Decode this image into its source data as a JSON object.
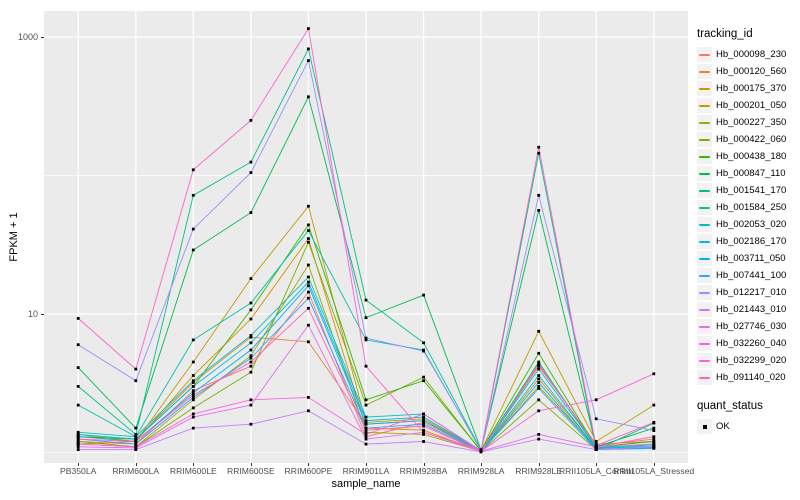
{
  "figure": {
    "background": "#FFFFFF",
    "panel_bg": "#EBEBEB",
    "grid_color": "#FFFFFF",
    "tick_color": "#333333",
    "tick_label_color": "#4D4D4D",
    "point_color": "#000000"
  },
  "chart_data": {
    "type": "line",
    "title": "",
    "xlabel": "sample_name",
    "ylabel": "FPKM + 1",
    "y_scale": "log10",
    "grid": true,
    "legend_position": "right",
    "x_categories": [
      "PB350LA",
      "RRIM600LA",
      "RRIM600LE",
      "RRIM600SE",
      "RRIM600PE",
      "RRIM901LA",
      "RRIM928BA",
      "RRIM928LA",
      "RRIM928LE",
      "RRII105LA_Control",
      "RRII105LA_Stressed"
    ],
    "y_major_ticks": [
      {
        "value": 10,
        "label": "10"
      },
      {
        "value": 1000,
        "label": "1000"
      }
    ],
    "y_minor_ticks": [
      1,
      100
    ],
    "ylim": [
      0.84,
      1540
    ],
    "legend_title": "tracking_id",
    "legend2_title": "quant_status",
    "quant_status": {
      "label": "OK",
      "marker_color": "#000000"
    },
    "series": [
      {
        "name": "Hb_000098_230",
        "color": "#F8766D",
        "values": [
          1.2,
          1.15,
          2.8,
          4.2,
          14.4,
          1.3,
          1.65,
          1.03,
          4.4,
          1.12,
          1.25
        ]
      },
      {
        "name": "Hb_000120_560",
        "color": "#EA8331",
        "values": [
          1.3,
          1.25,
          3.2,
          6.8,
          6.3,
          1.6,
          1.7,
          1.03,
          4.2,
          1.15,
          1.2
        ]
      },
      {
        "name": "Hb_000175_370",
        "color": "#D89000",
        "values": [
          1.15,
          1.2,
          3.6,
          9.2,
          35,
          1.5,
          1.45,
          1.02,
          3.4,
          1.08,
          1.1
        ]
      },
      {
        "name": "Hb_000201_050",
        "color": "#C09B00",
        "values": [
          1.35,
          1.2,
          4.5,
          18,
          60,
          1.65,
          1.75,
          1.03,
          7.5,
          1.2,
          2.2
        ]
      },
      {
        "name": "Hb_000227_350",
        "color": "#A3A500",
        "values": [
          1.15,
          1.1,
          2.4,
          5.0,
          22.6,
          1.4,
          1.35,
          1.02,
          3.0,
          1.08,
          1.15
        ]
      },
      {
        "name": "Hb_000422_060",
        "color": "#7CAE00",
        "values": [
          1.2,
          1.1,
          2.1,
          3.8,
          33,
          2.2,
          3.5,
          1.02,
          2.4,
          1.05,
          1.08
        ]
      },
      {
        "name": "Hb_000438_180",
        "color": "#39B600",
        "values": [
          1.3,
          1.25,
          3.0,
          10.7,
          44,
          2.4,
          3.3,
          1.03,
          5.2,
          1.1,
          1.2
        ]
      },
      {
        "name": "Hb_000847_110",
        "color": "#00BB4E",
        "values": [
          4.1,
          1.5,
          29,
          54,
          370,
          9.4,
          13.7,
          1.04,
          56,
          1.1,
          1.5
        ]
      },
      {
        "name": "Hb_001541_170",
        "color": "#00C087",
        "values": [
          3.0,
          1.35,
          72,
          125,
          820,
          12.6,
          6.2,
          1.04,
          145,
          1.05,
          1.63
        ]
      },
      {
        "name": "Hb_001584_250",
        "color": "#00C1A3",
        "values": [
          2.2,
          1.3,
          6.5,
          12,
          40,
          6.5,
          5.5,
          1.03,
          4.5,
          1.08,
          1.15
        ]
      },
      {
        "name": "Hb_002053_020",
        "color": "#00BFC4",
        "values": [
          1.4,
          1.3,
          3.3,
          7.0,
          18.5,
          1.8,
          1.9,
          1.03,
          4.0,
          1.1,
          1.12
        ]
      },
      {
        "name": "Hb_002186_170",
        "color": "#00BAE0",
        "values": [
          1.35,
          1.25,
          3.0,
          6.2,
          17,
          1.7,
          1.8,
          1.03,
          3.6,
          1.08,
          1.1
        ]
      },
      {
        "name": "Hb_003711_050",
        "color": "#00B0F6",
        "values": [
          1.3,
          1.2,
          2.7,
          5.5,
          16,
          1.6,
          1.7,
          1.02,
          3.2,
          1.06,
          1.08
        ]
      },
      {
        "name": "Hb_007441_100",
        "color": "#35A2FF",
        "values": [
          1.25,
          1.15,
          2.5,
          4.8,
          13,
          1.5,
          1.6,
          1.02,
          2.9,
          1.05,
          1.07
        ]
      },
      {
        "name": "Hb_012217_010",
        "color": "#9590FF",
        "values": [
          6.0,
          3.3,
          41,
          105,
          675,
          6.7,
          5.4,
          1.04,
          72,
          1.75,
          1.44
        ]
      },
      {
        "name": "Hb_021443_010",
        "color": "#C77CFF",
        "values": [
          1.05,
          1.05,
          1.5,
          1.6,
          2.0,
          1.15,
          1.2,
          1.01,
          1.25,
          1.05,
          1.1
        ]
      },
      {
        "name": "Hb_027746_030",
        "color": "#E76BF3",
        "values": [
          1.1,
          1.08,
          1.8,
          2.2,
          8.3,
          1.25,
          1.4,
          1.02,
          1.35,
          1.1,
          1.15
        ]
      },
      {
        "name": "Hb_032260_040",
        "color": "#FA62DB",
        "values": [
          1.15,
          1.1,
          1.9,
          2.4,
          2.5,
          1.35,
          1.9,
          1.02,
          2.0,
          2.4,
          3.7
        ]
      },
      {
        "name": "Hb_032299_020",
        "color": "#FF61CC",
        "values": [
          9.3,
          4.0,
          110,
          250,
          1150,
          4.2,
          1.4,
          1.05,
          160,
          1.1,
          1.3
        ]
      },
      {
        "name": "Hb_091140_020",
        "color": "#FF62BC",
        "values": [
          1.25,
          1.2,
          2.6,
          4.5,
          11,
          1.45,
          1.55,
          1.02,
          4.3,
          1.12,
          1.65
        ]
      }
    ]
  }
}
